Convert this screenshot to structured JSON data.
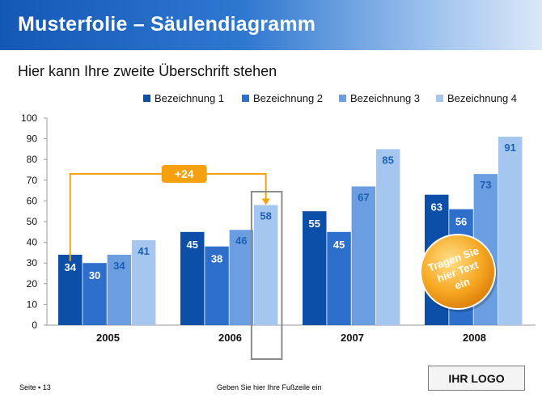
{
  "slide": {
    "title": "Musterfolie – Säulendiagramm",
    "subtitle": "Hier kann Ihre zweite Überschrift stehen",
    "footer_page": "Seite ▪ 13",
    "footer_text": "Geben Sie hier Ihre Fußzeile ein",
    "logo": "IHR LOGO",
    "callout_badge": "+24",
    "circle_text": [
      "Tragen Sie",
      "hier Text",
      "ein"
    ]
  },
  "colors": {
    "series": [
      "#0b4fa8",
      "#2f6fcc",
      "#6a9ee0",
      "#a4c6ef"
    ],
    "value_label_light": "#ffffff",
    "value_label_dark": "#1c5fb5",
    "accent_orange": "#f5a00f",
    "title_bar_start": "#1458b5"
  },
  "chart_data": {
    "type": "bar",
    "categories": [
      "2005",
      "2006",
      "2007",
      "2008"
    ],
    "series": [
      {
        "name": "Bezeichnung 1",
        "values": [
          34,
          45,
          55,
          63
        ]
      },
      {
        "name": "Bezeichnung 2",
        "values": [
          30,
          38,
          45,
          56
        ]
      },
      {
        "name": "Bezeichnung 3",
        "values": [
          34,
          46,
          67,
          73
        ]
      },
      {
        "name": "Bezeichnung 4",
        "values": [
          41,
          58,
          85,
          91
        ]
      }
    ],
    "ylim": [
      0,
      100
    ],
    "yticks": [
      0,
      10,
      20,
      30,
      40,
      50,
      60,
      70,
      80,
      90,
      100
    ],
    "grid": false,
    "legend": "top-right",
    "annotation": {
      "label": "+24",
      "from": {
        "category": "2005",
        "series": 0
      },
      "to": {
        "category": "2006",
        "series": 3
      }
    }
  }
}
